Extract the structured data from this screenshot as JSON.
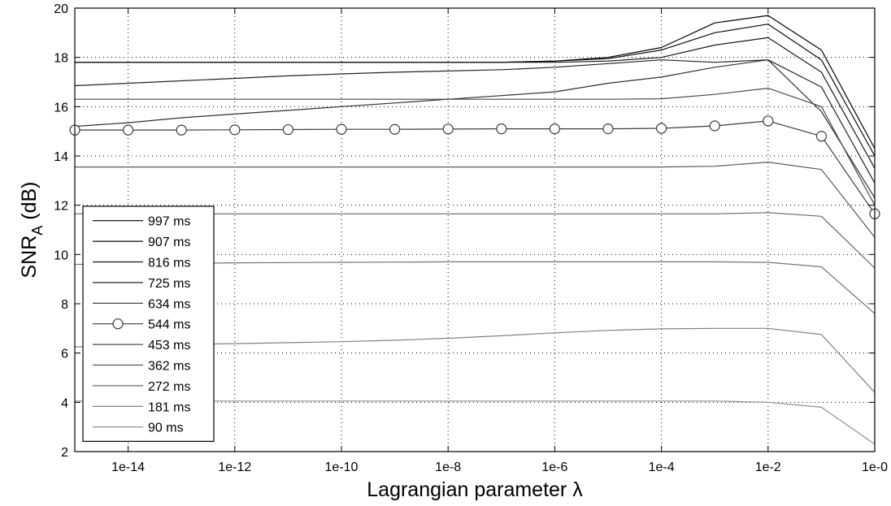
{
  "chart_data": {
    "type": "line",
    "xlabel": "Lagrangian parameter λ",
    "ylabel_main": "SNR",
    "ylabel_sub": "A",
    "ylabel_unit": " (dB)",
    "x_scale": "log",
    "xlim": [
      1e-15,
      1
    ],
    "ylim": [
      2,
      20
    ],
    "grid": true,
    "legend_position": "bottom-left",
    "x": [
      1e-15,
      1e-14,
      1e-13,
      1e-12,
      1e-11,
      1e-10,
      1e-09,
      1e-08,
      1e-07,
      1e-06,
      1e-05,
      0.0001,
      0.001,
      0.01,
      0.1,
      1
    ],
    "x_ticks": [
      1e-14,
      1e-12,
      1e-10,
      1e-08,
      1e-06,
      0.0001,
      0.01,
      1
    ],
    "x_tick_labels": [
      "1e-14",
      "1e-12",
      "1e-10",
      "1e-8",
      "1e-6",
      "1e-4",
      "1e-2",
      "1e-0"
    ],
    "y_ticks": [
      2,
      4,
      6,
      8,
      10,
      12,
      14,
      16,
      18,
      20
    ],
    "y_tick_labels": [
      "2",
      "4",
      "6",
      "8",
      "10",
      "12",
      "14",
      "16",
      "18",
      "20"
    ],
    "series": [
      {
        "name": "997 ms",
        "color": "#000000",
        "marker": "none",
        "values": [
          17.8,
          17.8,
          17.8,
          17.8,
          17.8,
          17.8,
          17.8,
          17.8,
          17.8,
          17.85,
          18.0,
          18.4,
          19.4,
          19.7,
          18.3,
          14.3
        ]
      },
      {
        "name": "907 ms",
        "color": "#0c0c0c",
        "marker": "none",
        "values": [
          17.8,
          17.8,
          17.8,
          17.8,
          17.8,
          17.8,
          17.8,
          17.8,
          17.8,
          17.85,
          17.95,
          18.3,
          19.0,
          19.35,
          17.9,
          14.0
        ]
      },
      {
        "name": "816 ms",
        "color": "#181818",
        "marker": "none",
        "values": [
          17.8,
          17.8,
          17.8,
          17.8,
          17.8,
          17.8,
          17.8,
          17.8,
          17.8,
          17.8,
          17.85,
          18.0,
          18.5,
          18.8,
          17.4,
          13.5
        ]
      },
      {
        "name": "725 ms",
        "color": "#242424",
        "marker": "none",
        "values": [
          16.85,
          16.95,
          17.05,
          17.15,
          17.25,
          17.33,
          17.4,
          17.45,
          17.5,
          17.6,
          17.75,
          17.9,
          17.8,
          17.9,
          16.8,
          12.9
        ]
      },
      {
        "name": "634 ms",
        "color": "#303030",
        "marker": "none",
        "values": [
          15.2,
          15.35,
          15.55,
          15.7,
          15.85,
          16.0,
          16.15,
          16.3,
          16.45,
          16.6,
          16.95,
          17.2,
          17.6,
          17.9,
          15.8,
          12.3
        ]
      },
      {
        "name": "544 ms",
        "color": "#3c3c3c",
        "marker": "circle",
        "values": [
          15.05,
          15.05,
          15.05,
          15.06,
          15.07,
          15.08,
          15.08,
          15.09,
          15.1,
          15.1,
          15.1,
          15.12,
          15.22,
          15.42,
          14.8,
          11.65
        ]
      },
      {
        "name": "453 ms",
        "color": "#4a4a4a",
        "marker": "none",
        "values": [
          16.3,
          16.3,
          16.3,
          16.3,
          16.3,
          16.3,
          16.3,
          16.3,
          16.3,
          16.3,
          16.3,
          16.32,
          16.5,
          16.75,
          16.0,
          12.0
        ]
      },
      {
        "name": "362 ms",
        "color": "#585858",
        "marker": "none",
        "values": [
          13.55,
          13.55,
          13.55,
          13.55,
          13.55,
          13.55,
          13.55,
          13.55,
          13.55,
          13.55,
          13.55,
          13.55,
          13.58,
          13.75,
          13.45,
          10.7
        ]
      },
      {
        "name": "272 ms",
        "color": "#666666",
        "marker": "none",
        "values": [
          11.65,
          11.65,
          11.65,
          11.65,
          11.65,
          11.65,
          11.65,
          11.65,
          11.65,
          11.65,
          11.65,
          11.65,
          11.65,
          11.7,
          11.55,
          9.45
        ]
      },
      {
        "name": "181 ms",
        "color": "#747474",
        "marker": "none",
        "values": [
          9.6,
          9.62,
          9.64,
          9.66,
          9.67,
          9.68,
          9.69,
          9.7,
          9.7,
          9.7,
          9.7,
          9.7,
          9.7,
          9.68,
          9.5,
          7.6
        ]
      },
      {
        "name": "90 ms",
        "color": "#828282",
        "marker": "none",
        "values": [
          6.25,
          6.3,
          6.35,
          6.38,
          6.42,
          6.46,
          6.52,
          6.6,
          6.7,
          6.82,
          6.92,
          6.98,
          7.0,
          7.0,
          6.75,
          4.4
        ]
      },
      {
        "name": "",
        "color": "#909090",
        "marker": "none",
        "values": [
          4.05,
          4.05,
          4.05,
          4.05,
          4.05,
          4.05,
          4.05,
          4.05,
          4.05,
          4.05,
          4.05,
          4.05,
          4.05,
          4.0,
          3.8,
          2.3
        ]
      }
    ]
  }
}
